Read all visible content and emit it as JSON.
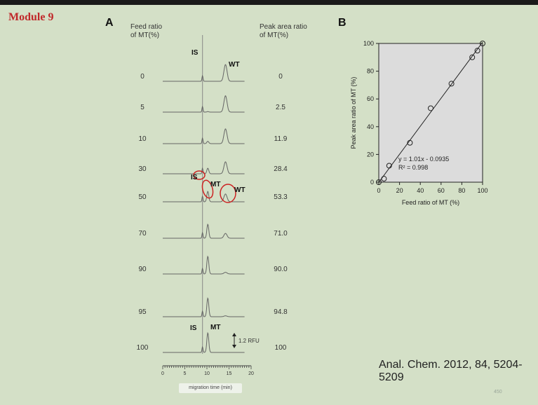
{
  "module_label": "Module 9",
  "panel_a": {
    "letter": "A",
    "feed_header": [
      "Feed ratio",
      "of MT(%)"
    ],
    "peak_header": [
      "Peak area ratio",
      "of MT(%)"
    ],
    "rows": [
      {
        "feed": "0",
        "peak": "0"
      },
      {
        "feed": "5",
        "peak": "2.5"
      },
      {
        "feed": "10",
        "peak": "11.9"
      },
      {
        "feed": "30",
        "peak": "28.4"
      },
      {
        "feed": "50",
        "peak": "53.3"
      },
      {
        "feed": "70",
        "peak": "71.0"
      },
      {
        "feed": "90",
        "peak": "90.0"
      },
      {
        "feed": "95",
        "peak": "94.8"
      },
      {
        "feed": "100",
        "peak": "100"
      }
    ],
    "labels": {
      "is_top": "IS",
      "wt_top": "WT",
      "is_mid": "IS",
      "mt_mid": "MT",
      "wt_mid": "WT",
      "is_bottom": "IS",
      "mt_bottom": "MT"
    },
    "scale_bar": "1.2 RFU",
    "x_ticks": [
      "0",
      "5",
      "10",
      "15",
      "20"
    ],
    "x_label": "migration time (min)",
    "annotation_color": "#cc2222"
  },
  "chart_data": {
    "type": "scatter",
    "panel_letter": "B",
    "x": [
      0,
      5,
      10,
      30,
      50,
      70,
      90,
      95,
      100
    ],
    "y": [
      0,
      2.5,
      11.9,
      28.4,
      53.3,
      71.0,
      90.0,
      94.8,
      100
    ],
    "xlabel": "Feed ratio of MT (%)",
    "ylabel": "Peak area ratio of MT (%)",
    "xlim": [
      0,
      100
    ],
    "ylim": [
      0,
      100
    ],
    "xticks": [
      0,
      20,
      40,
      60,
      80,
      100
    ],
    "yticks": [
      0,
      20,
      40,
      60,
      80,
      100
    ],
    "fit": {
      "slope": 1.01,
      "intercept": -0.0935
    },
    "equation": "y = 1.01x - 0.0935",
    "r2": "R² = 0.998",
    "plot_bg": "#dcdcdc"
  },
  "reference": "Anal. Chem. 2012, 84, 5204-5209",
  "page_number": "450"
}
